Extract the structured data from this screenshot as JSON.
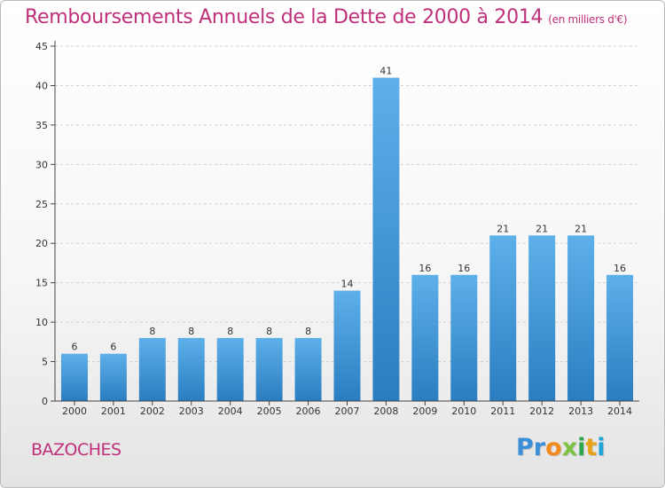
{
  "header": {
    "title": "Remboursements Annuels de la Dette de 2000 à 2014",
    "unit": "(en milliers d'€)"
  },
  "footer": {
    "commune": "BAZOCHES",
    "logo_letters": [
      "P",
      "r",
      "o",
      "x",
      "i",
      "t",
      "i"
    ],
    "logo_colors": [
      "#3b8fd9",
      "#3b8fd9",
      "#f08a1c",
      "#7cc243",
      "#2fa84f",
      "#e8a21a",
      "#1ea4d8"
    ]
  },
  "chart_data": {
    "type": "bar",
    "title": "Remboursements Annuels de la Dette de 2000 à 2014",
    "xlabel": "",
    "ylabel": "(en milliers d'€)",
    "categories": [
      "2000",
      "2001",
      "2002",
      "2003",
      "2004",
      "2005",
      "2006",
      "2007",
      "2008",
      "2009",
      "2010",
      "2011",
      "2012",
      "2013",
      "2014"
    ],
    "values": [
      6,
      6,
      8,
      8,
      8,
      8,
      8,
      14,
      41,
      16,
      16,
      21,
      21,
      21,
      16
    ],
    "ylim": [
      0,
      45
    ],
    "yticks": [
      0,
      5,
      10,
      15,
      20,
      25,
      30,
      35,
      40,
      45
    ],
    "grid": true,
    "colors": {
      "bar_light": "#5eb0ea",
      "bar_dark": "#2a7dc0",
      "grid": "#cfcfcf",
      "axis": "#444444",
      "text": "#333333"
    }
  }
}
